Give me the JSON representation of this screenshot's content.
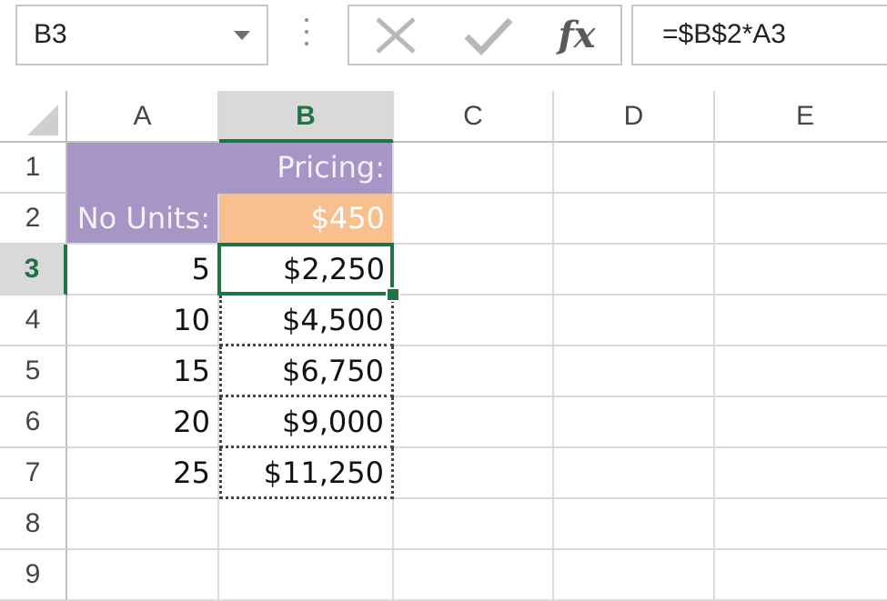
{
  "formula_bar": {
    "name_box": "B3",
    "formula": "=$B$2*A3",
    "fx_label": "fx"
  },
  "columns": [
    "A",
    "B",
    "C",
    "D",
    "E"
  ],
  "rows": [
    "1",
    "2",
    "3",
    "4",
    "5",
    "6",
    "7",
    "8",
    "9"
  ],
  "cells": {
    "B1": "Pricing:",
    "A2": "No Units:",
    "B2": "$450",
    "A3": "5",
    "B3": "$2,250",
    "A4": "10",
    "B4": "$4,500",
    "A5": "15",
    "B5": "$6,750",
    "A6": "20",
    "B6": "$9,000",
    "A7": "25",
    "B7": "$11,250"
  },
  "selected_cell": "B3",
  "colors": {
    "accent": "#217346",
    "header_fill": "#a795c5",
    "input_fill": "#f8c08f"
  }
}
